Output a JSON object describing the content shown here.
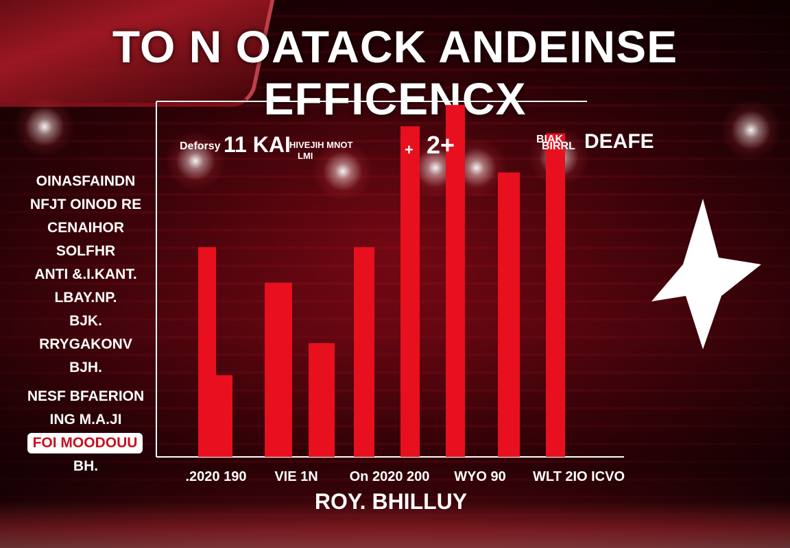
{
  "title": "TO N OATACK ANDEINSE EFFICENCX",
  "left_list": [
    "OINASFAINDN",
    "NFJT OINOD RE",
    "CENAIHOR",
    "SOLFHR",
    "ANTI &.I.KANT.",
    "LBAY.NP.",
    "BJK.",
    "RRYGAKONV",
    "BJH.",
    "NESF BFAERION",
    "ING M.A.JI",
    "FOI MOODOUU",
    "BH."
  ],
  "colors": {
    "bar": "#e8101e",
    "background": "#3a0409",
    "text": "#ffffff"
  },
  "icons": [
    "star-icon"
  ],
  "chart_data": {
    "type": "bar",
    "title": "TO N OATACK ANDEINSE EFFICENCX",
    "xlabel": "ROY. BHILLUY",
    "ylabel": "",
    "x_tick_labels": [
      ".2020 190",
      "VIE 1N",
      "On 2020 200",
      "WYO 90",
      "WLT 2IO ICVO"
    ],
    "ylim": [
      0,
      100
    ],
    "bar_values": [
      59,
      23,
      49,
      32,
      59,
      93,
      99,
      80,
      91
    ],
    "annotations": [
      "Deforsy",
      "11 KAI",
      "HIVEJIH MNOT",
      "LMI",
      "+",
      "2+",
      "BIAK",
      "BIRRL",
      "DEAFE"
    ]
  }
}
